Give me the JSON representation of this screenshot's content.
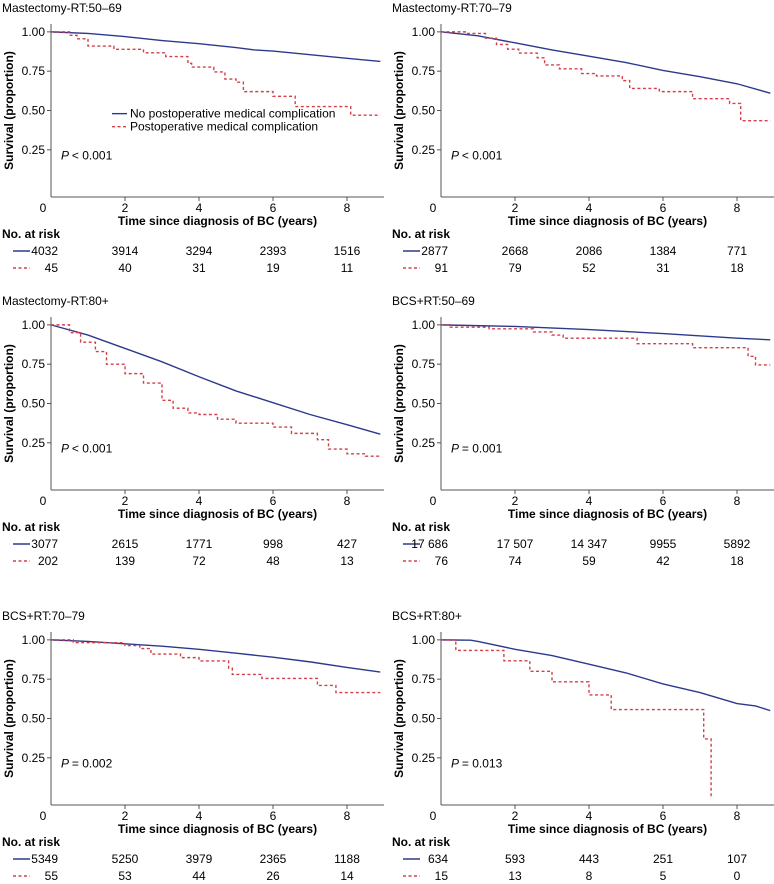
{
  "colors": {
    "no_complication": "#2d3a8c",
    "complication": "#d2404a",
    "axis": "#555555"
  },
  "legend": [
    "No postoperative medical complication",
    "Postoperative medical complication"
  ],
  "chart_data": [
    {
      "type": "line",
      "title": "Mastectomy-RT:50–69",
      "xlabel": "Time since diagnosis of BC (years)",
      "ylabel": "Survival (proportion)",
      "xlim": [
        0,
        9
      ],
      "ylim": [
        -0.05,
        1.05
      ],
      "xticks": [
        "0",
        "2",
        "4",
        "6",
        "8"
      ],
      "yticks": [
        "1.00",
        "0.75",
        "0.50",
        "0.25"
      ],
      "pvalue": "< 0.001",
      "legend_shown": true,
      "risk_label": "No. at risk",
      "risk": [
        [
          "4032",
          "3914",
          "3294",
          "2393",
          "1516"
        ],
        [
          "45",
          "40",
          "31",
          "19",
          "11"
        ]
      ],
      "series": [
        {
          "name": "No postoperative medical complication",
          "points": [
            [
              0,
              1
            ],
            [
              1,
              0.99
            ],
            [
              2,
              0.97
            ],
            [
              3,
              0.945
            ],
            [
              4,
              0.925
            ],
            [
              5,
              0.9
            ],
            [
              5.5,
              0.885
            ],
            [
              6,
              0.878
            ],
            [
              7,
              0.855
            ],
            [
              8,
              0.832
            ],
            [
              8.9,
              0.812
            ]
          ]
        },
        {
          "name": "Postoperative medical complication",
          "points": [
            [
              0,
              1
            ],
            [
              0.5,
              0.978
            ],
            [
              0.7,
              0.956
            ],
            [
              1.0,
              0.91
            ],
            [
              1.7,
              0.889
            ],
            [
              2.5,
              0.867
            ],
            [
              3.1,
              0.843
            ],
            [
              3.7,
              0.8
            ],
            [
              3.8,
              0.776
            ],
            [
              4.4,
              0.745
            ],
            [
              4.7,
              0.7
            ],
            [
              5.0,
              0.68
            ],
            [
              5.2,
              0.62
            ],
            [
              6.0,
              0.59
            ],
            [
              6.6,
              0.525
            ],
            [
              8.1,
              0.47
            ],
            [
              8.9,
              0.47
            ]
          ]
        }
      ]
    },
    {
      "type": "line",
      "title": "Mastectomy-RT:70–79",
      "xlabel": "Time since diagnosis of BC (years)",
      "ylabel": "Survival (proportion)",
      "xlim": [
        0,
        9
      ],
      "ylim": [
        -0.05,
        1.05
      ],
      "xticks": [
        "0",
        "2",
        "4",
        "6",
        "8"
      ],
      "yticks": [
        "1.00",
        "0.75",
        "0.50",
        "0.25"
      ],
      "pvalue": "< 0.001",
      "risk_label": "No. at risk",
      "risk": [
        [
          "2877",
          "2668",
          "2086",
          "1384",
          "771"
        ],
        [
          "91",
          "79",
          "52",
          "31",
          "18"
        ]
      ],
      "series": [
        {
          "name": "No postoperative medical complication",
          "points": [
            [
              0,
              1
            ],
            [
              1,
              0.975
            ],
            [
              2,
              0.93
            ],
            [
              3,
              0.885
            ],
            [
              4,
              0.845
            ],
            [
              5,
              0.805
            ],
            [
              6,
              0.755
            ],
            [
              7,
              0.715
            ],
            [
              8,
              0.67
            ],
            [
              8.9,
              0.61
            ]
          ]
        },
        {
          "name": "Postoperative medical complication",
          "points": [
            [
              0,
              1
            ],
            [
              0.7,
              0.99
            ],
            [
              1.2,
              0.96
            ],
            [
              1.5,
              0.92
            ],
            [
              1.8,
              0.89
            ],
            [
              2.1,
              0.865
            ],
            [
              2.6,
              0.835
            ],
            [
              2.8,
              0.79
            ],
            [
              3.2,
              0.765
            ],
            [
              3.8,
              0.735
            ],
            [
              4.2,
              0.72
            ],
            [
              4.9,
              0.69
            ],
            [
              5.1,
              0.64
            ],
            [
              5.9,
              0.62
            ],
            [
              6.8,
              0.575
            ],
            [
              7.8,
              0.545
            ],
            [
              8.1,
              0.435
            ],
            [
              8.9,
              0.435
            ]
          ]
        }
      ]
    },
    {
      "type": "line",
      "title": "Mastectomy-RT:80+",
      "xlabel": "Time since diagnosis of BC (years)",
      "ylabel": "Survival (proportion)",
      "xlim": [
        0,
        9
      ],
      "ylim": [
        -0.05,
        1.05
      ],
      "xticks": [
        "0",
        "2",
        "4",
        "6",
        "8"
      ],
      "yticks": [
        "1.00",
        "0.75",
        "0.50",
        "0.25"
      ],
      "pvalue": "< 0.001",
      "risk_label": "No. at risk",
      "risk": [
        [
          "3077",
          "2615",
          "1771",
          "998",
          "427"
        ],
        [
          "202",
          "139",
          "72",
          "48",
          "13"
        ]
      ],
      "series": [
        {
          "name": "No postoperative medical complication",
          "points": [
            [
              0,
              1
            ],
            [
              1,
              0.935
            ],
            [
              2,
              0.85
            ],
            [
              3,
              0.765
            ],
            [
              4,
              0.67
            ],
            [
              5,
              0.58
            ],
            [
              6,
              0.505
            ],
            [
              7,
              0.43
            ],
            [
              8,
              0.365
            ],
            [
              8.9,
              0.305
            ]
          ]
        },
        {
          "name": "Postoperative medical complication",
          "points": [
            [
              0,
              1
            ],
            [
              0.5,
              0.95
            ],
            [
              0.8,
              0.89
            ],
            [
              1.2,
              0.83
            ],
            [
              1.5,
              0.75
            ],
            [
              2,
              0.69
            ],
            [
              2.5,
              0.63
            ],
            [
              3,
              0.52
            ],
            [
              3.3,
              0.47
            ],
            [
              3.7,
              0.44
            ],
            [
              4,
              0.43
            ],
            [
              4.5,
              0.4
            ],
            [
              5,
              0.375
            ],
            [
              6,
              0.35
            ],
            [
              6.5,
              0.31
            ],
            [
              7.2,
              0.27
            ],
            [
              7.5,
              0.21
            ],
            [
              8,
              0.18
            ],
            [
              8.5,
              0.165
            ],
            [
              8.9,
              0.16
            ]
          ]
        }
      ]
    },
    {
      "type": "line",
      "title": "BCS+RT:50–69",
      "xlabel": "Time since diagnosis of BC (years)",
      "ylabel": "Survival (proportion)",
      "xlim": [
        0,
        9
      ],
      "ylim": [
        -0.05,
        1.05
      ],
      "xticks": [
        "0",
        "2",
        "4",
        "6",
        "8"
      ],
      "yticks": [
        "1.00",
        "0.75",
        "0.50",
        "0.25"
      ],
      "pvalue": "= 0.001",
      "risk_label": "No. at risk",
      "risk": [
        [
          "17 686",
          "17 507",
          "14 347",
          "9955",
          "5892"
        ],
        [
          "76",
          "74",
          "59",
          "42",
          "18"
        ]
      ],
      "series": [
        {
          "name": "No postoperative medical complication",
          "points": [
            [
              0,
              1
            ],
            [
              2,
              0.99
            ],
            [
              4,
              0.97
            ],
            [
              6,
              0.945
            ],
            [
              8,
              0.915
            ],
            [
              8.9,
              0.905
            ]
          ]
        },
        {
          "name": "Postoperative medical complication",
          "points": [
            [
              0,
              1
            ],
            [
              0.2,
              0.985
            ],
            [
              1.3,
              0.975
            ],
            [
              2.5,
              0.955
            ],
            [
              3.0,
              0.935
            ],
            [
              3.3,
              0.915
            ],
            [
              5.3,
              0.88
            ],
            [
              6.8,
              0.855
            ],
            [
              8.3,
              0.8
            ],
            [
              8.5,
              0.745
            ],
            [
              8.9,
              0.745
            ]
          ]
        }
      ]
    },
    {
      "type": "line",
      "title": "BCS+RT:70–79",
      "xlabel": "Time since diagnosis of BC (years)",
      "ylabel": "Survival (proportion)",
      "xlim": [
        0,
        9
      ],
      "ylim": [
        -0.05,
        1.05
      ],
      "xticks": [
        "0",
        "2",
        "4",
        "6",
        "8"
      ],
      "yticks": [
        "1.00",
        "0.75",
        "0.50",
        "0.25"
      ],
      "pvalue": "= 0.002",
      "risk_label": "No. at risk",
      "risk": [
        [
          "5349",
          "5250",
          "3979",
          "2365",
          "1188"
        ],
        [
          "55",
          "53",
          "44",
          "26",
          "14"
        ]
      ],
      "series": [
        {
          "name": "No postoperative medical complication",
          "points": [
            [
              0,
              1
            ],
            [
              1,
              0.99
            ],
            [
              2,
              0.975
            ],
            [
              3,
              0.96
            ],
            [
              4,
              0.94
            ],
            [
              5,
              0.915
            ],
            [
              6,
              0.89
            ],
            [
              7,
              0.86
            ],
            [
              8,
              0.825
            ],
            [
              8.9,
              0.795
            ]
          ]
        },
        {
          "name": "Postoperative medical complication",
          "points": [
            [
              0,
              1
            ],
            [
              0.6,
              0.982
            ],
            [
              2.0,
              0.964
            ],
            [
              2.4,
              0.945
            ],
            [
              2.7,
              0.91
            ],
            [
              3.5,
              0.887
            ],
            [
              4.0,
              0.866
            ],
            [
              4.8,
              0.82
            ],
            [
              4.9,
              0.78
            ],
            [
              5.7,
              0.755
            ],
            [
              7.2,
              0.71
            ],
            [
              7.7,
              0.665
            ],
            [
              8.9,
              0.665
            ]
          ]
        }
      ]
    },
    {
      "type": "line",
      "title": "BCS+RT:80+",
      "xlabel": "Time since diagnosis of BC (years)",
      "ylabel": "Survival (proportion)",
      "xlim": [
        0,
        9
      ],
      "ylim": [
        -0.05,
        1.05
      ],
      "xticks": [
        "0",
        "2",
        "4",
        "6",
        "8"
      ],
      "yticks": [
        "1.00",
        "0.75",
        "0.50",
        "0.25"
      ],
      "pvalue": "= 0.013",
      "risk_label": "No. at risk",
      "risk": [
        [
          "634",
          "593",
          "443",
          "251",
          "107"
        ],
        [
          "15",
          "13",
          "8",
          "5",
          "0"
        ]
      ],
      "series": [
        {
          "name": "No postoperative medical complication",
          "points": [
            [
              0,
              1
            ],
            [
              0.8,
              0.998
            ],
            [
              1,
              0.99
            ],
            [
              2,
              0.94
            ],
            [
              3,
              0.9
            ],
            [
              4,
              0.845
            ],
            [
              5,
              0.79
            ],
            [
              6,
              0.72
            ],
            [
              7,
              0.665
            ],
            [
              7.5,
              0.63
            ],
            [
              8,
              0.595
            ],
            [
              8.5,
              0.58
            ],
            [
              8.9,
              0.55
            ]
          ]
        },
        {
          "name": "Postoperative medical complication",
          "points": [
            [
              0,
              1
            ],
            [
              0.4,
              0.933
            ],
            [
              1.7,
              0.867
            ],
            [
              2.4,
              0.8
            ],
            [
              3.0,
              0.733
            ],
            [
              4.0,
              0.65
            ],
            [
              4.6,
              0.557
            ],
            [
              7.1,
              0.37
            ],
            [
              7.3,
              0.0
            ]
          ]
        }
      ]
    }
  ]
}
